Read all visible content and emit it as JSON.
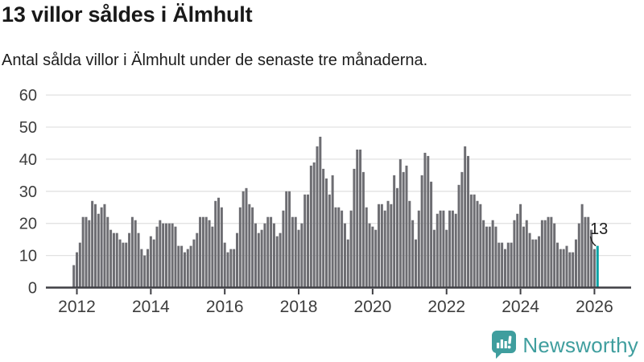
{
  "header": {
    "title": "13 villor såldes i Älmhult",
    "subtitle": "Antal sålda villor i Älmhult under de senaste tre månaderna."
  },
  "chart_data": {
    "type": "bar",
    "title": "13 villor såldes i Älmhult",
    "subtitle": "Antal sålda villor i Älmhult under de senaste tre månaderna.",
    "xlabel": "",
    "ylabel": "",
    "x_start_month": "2011-12",
    "x_end_month": "2026-02",
    "frequency": "monthly",
    "values": [
      7,
      11,
      14,
      22,
      22,
      21,
      27,
      26,
      23,
      25,
      26,
      22,
      18,
      17,
      17,
      15,
      14,
      14,
      17,
      22,
      21,
      17,
      12,
      10,
      12,
      16,
      15,
      19,
      21,
      20,
      20,
      20,
      20,
      19,
      13,
      13,
      11,
      12,
      13,
      15,
      17,
      22,
      22,
      22,
      21,
      19,
      27,
      28,
      25,
      14,
      11,
      12,
      12,
      17,
      25,
      30,
      31,
      26,
      25,
      20,
      17,
      18,
      20,
      22,
      22,
      20,
      16,
      17,
      24,
      30,
      30,
      22,
      22,
      18,
      20,
      29,
      29,
      38,
      39,
      44,
      47,
      37,
      34,
      29,
      35,
      25,
      25,
      24,
      20,
      15,
      24,
      37,
      43,
      43,
      36,
      25,
      20,
      19,
      18,
      26,
      26,
      24,
      27,
      26,
      35,
      31,
      40,
      36,
      38,
      27,
      21,
      15,
      24,
      35,
      42,
      41,
      33,
      18,
      23,
      24,
      24,
      18,
      24,
      24,
      23,
      32,
      36,
      44,
      41,
      29,
      29,
      27,
      26,
      21,
      19,
      19,
      21,
      19,
      14,
      14,
      12,
      14,
      14,
      21,
      23,
      26,
      19,
      21,
      17,
      15,
      15,
      16,
      21,
      21,
      22,
      22,
      20,
      14,
      12,
      12,
      13,
      11,
      11,
      15,
      20,
      26,
      22,
      22,
      18,
      12,
      13
    ],
    "highlight_last": true,
    "annotation_label": "13",
    "ylim": [
      0,
      60
    ],
    "yticks": [
      0,
      10,
      20,
      30,
      40,
      50,
      60
    ],
    "xticks": [
      "2012",
      "2014",
      "2016",
      "2018",
      "2020",
      "2022",
      "2024",
      "2026"
    ],
    "grid": true,
    "legend": false,
    "bar_color": "#6d6d72",
    "highlight_color": "#00a2a4",
    "gridline_color": "#e2e2e2",
    "axis_color": "#3f3f44",
    "tick_label_color": "#3d3d3d",
    "annotation_color": "#1d1d1d"
  },
  "footer": {
    "brand": "Newsworthy",
    "brand_color": "#3f9e9e",
    "logo_icon": "bar-chart-speech-bubble"
  }
}
